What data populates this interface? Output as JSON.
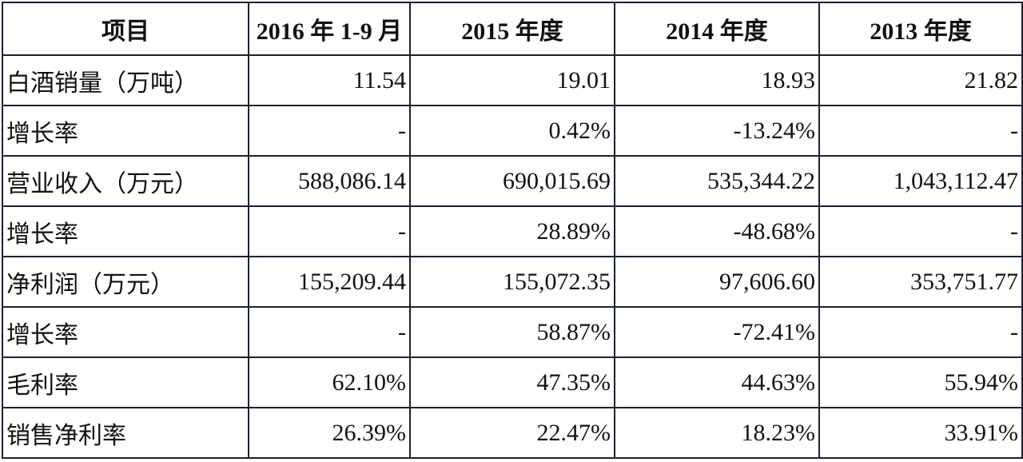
{
  "table": {
    "header": [
      "项目",
      "2016 年 1-9 月",
      "2015 年度",
      "2014 年度",
      "2013 年度"
    ],
    "rows": [
      [
        "白酒销量（万吨）",
        "11.54",
        "19.01",
        "18.93",
        "21.82"
      ],
      [
        "增长率",
        "-",
        "0.42%",
        "-13.24%",
        "-"
      ],
      [
        "营业收入（万元）",
        "588,086.14",
        "690,015.69",
        "535,344.22",
        "1,043,112.47"
      ],
      [
        "增长率",
        "-",
        "28.89%",
        "-48.68%",
        "-"
      ],
      [
        "净利润（万元）",
        "155,209.44",
        "155,072.35",
        "97,606.60",
        "353,751.77"
      ],
      [
        "增长率",
        "-",
        "58.87%",
        "-72.41%",
        "-"
      ],
      [
        "毛利率",
        "62.10%",
        "47.35%",
        "44.63%",
        "55.94%"
      ],
      [
        "销售净利率",
        "26.39%",
        "22.47%",
        "18.23%",
        "33.91%"
      ]
    ]
  }
}
